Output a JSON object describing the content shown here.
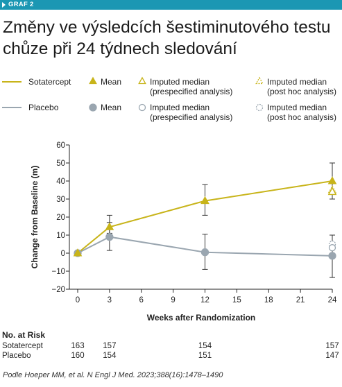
{
  "header": {
    "tag": "GRAF 2",
    "title": "Změny ve výsledcích šestiminutového testu chůze při 24 týdnech sledování"
  },
  "legend": {
    "sotatercept_label": "Sotatercept",
    "placebo_label": "Placebo",
    "mean": "Mean",
    "prespecified_line1": "Imputed median",
    "prespecified_line2": "(prespecified analysis)",
    "posthoc_line1": "Imputed median",
    "posthoc_line2": "(post hoc analysis)"
  },
  "chart_data": {
    "type": "line",
    "xlabel": "Weeks after Randomization",
    "ylabel": "Change from Baseline (m)",
    "xlim": [
      0,
      24
    ],
    "ylim": [
      -20,
      60
    ],
    "x_ticks": [
      0,
      3,
      6,
      9,
      12,
      15,
      18,
      21,
      24
    ],
    "y_ticks": [
      -20,
      -10,
      0,
      10,
      20,
      30,
      40,
      50,
      60
    ],
    "y_tick_labels": [
      "−20",
      "−10",
      "0",
      "10",
      "20",
      "30",
      "40",
      "50",
      "60"
    ],
    "series": [
      {
        "name": "Sotatercept",
        "color": "#c8b41a",
        "marker": "triangle",
        "x": [
          0,
          3,
          12,
          24
        ],
        "y": [
          0,
          14.5,
          29,
          40
        ],
        "err_low": [
          0,
          11,
          21,
          30
        ],
        "err_high": [
          0,
          21,
          38,
          50
        ]
      },
      {
        "name": "Placebo",
        "color": "#9aa6b0",
        "marker": "circle",
        "x": [
          0,
          3,
          12,
          24
        ],
        "y": [
          0,
          9,
          0.5,
          -1.5
        ],
        "err_low": [
          0,
          1.5,
          -9,
          -13.5
        ],
        "err_high": [
          0,
          17,
          10.5,
          10
        ]
      }
    ],
    "imputed_medians": {
      "sotatercept_prespecified": {
        "x": 24,
        "y": 34
      },
      "sotatercept_posthoc": {
        "x": 24,
        "y": 35
      },
      "placebo_prespecified": {
        "x": 24,
        "y": 3
      },
      "placebo_posthoc": {
        "x": 24,
        "y": 5
      }
    }
  },
  "risk_table": {
    "title": "No. at Risk",
    "weeks": [
      0,
      3,
      12,
      24
    ],
    "rows": [
      {
        "label": "Sotatercept",
        "values": [
          "163",
          "157",
          "154",
          "157"
        ]
      },
      {
        "label": "Placebo",
        "values": [
          "160",
          "154",
          "151",
          "147"
        ]
      }
    ]
  },
  "source": "Podle Hoeper MM, et al. N Engl J Med. 2023;388(16):1478–1490"
}
